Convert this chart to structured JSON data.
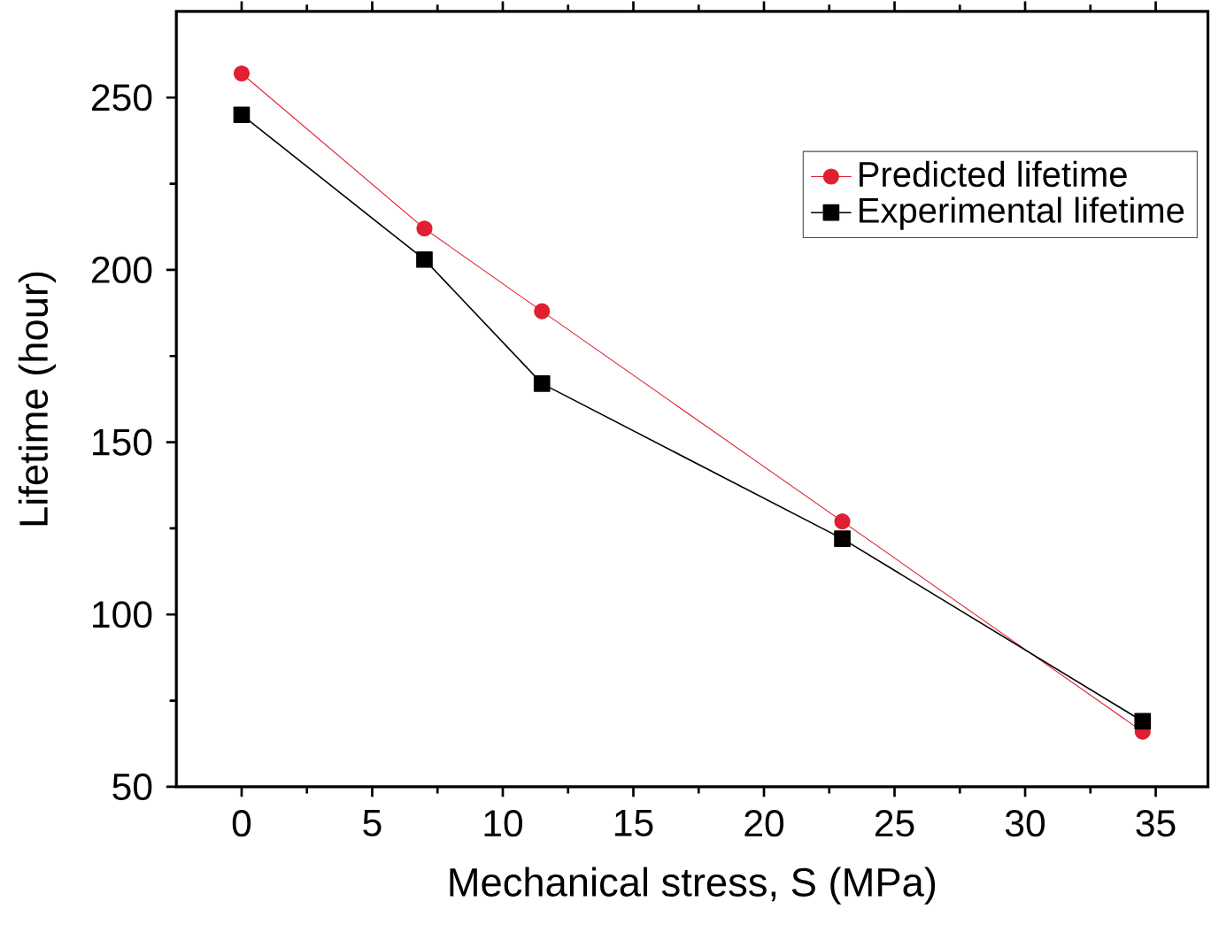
{
  "chart_data": {
    "type": "line",
    "xlabel": "Mechanical stress, S (MPa)",
    "ylabel": "Lifetime (hour)",
    "xlim": [
      -2.5,
      37
    ],
    "ylim": [
      50,
      275
    ],
    "xticks": [
      0,
      5,
      10,
      15,
      20,
      25,
      30,
      35
    ],
    "yticks": [
      50,
      100,
      150,
      200,
      250
    ],
    "legend": "top right",
    "grid": false,
    "series": [
      {
        "name": "Predicted lifetime",
        "color": "#e02030",
        "marker": "circle",
        "x": [
          0,
          7,
          11.5,
          23,
          34.5
        ],
        "values": [
          257,
          212,
          188,
          127,
          66
        ]
      },
      {
        "name": "Experimental lifetime",
        "color": "#000000",
        "marker": "square",
        "x": [
          0,
          7,
          11.5,
          23,
          34.5
        ],
        "values": [
          245,
          203,
          167,
          122,
          69
        ]
      }
    ]
  }
}
